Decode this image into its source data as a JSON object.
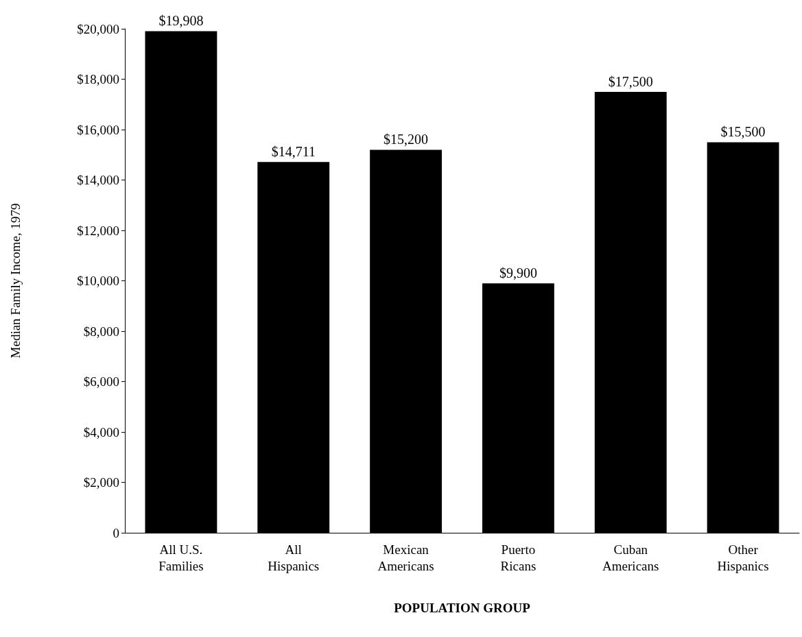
{
  "chart_data": {
    "type": "bar",
    "xlabel": "POPULATION GROUP",
    "ylabel": "Median Family Income, 1979",
    "categories": [
      "All U.S. Families",
      "All Hispanics",
      "Mexican Americans",
      "Puerto Ricans",
      "Cuban Americans",
      "Other Hispanics"
    ],
    "values": [
      19908,
      14711,
      15200,
      9900,
      17500,
      15500
    ],
    "value_labels": [
      "$19,908",
      "$14,711",
      "$15,200",
      "$9,900",
      "$17,500",
      "$15,500"
    ],
    "color": "#000000",
    "ylim": [
      0,
      20000
    ],
    "yticks": [
      0,
      {
        "value": 2000,
        "label": "$2,000"
      },
      {
        "value": 4000,
        "label": "$4,000"
      },
      {
        "value": 6000,
        "label": "$6,000"
      },
      {
        "value": 8000,
        "label": "$8,000"
      },
      {
        "value": 10000,
        "label": "$10,000"
      },
      {
        "value": 12000,
        "label": "$12,000"
      },
      {
        "value": 14000,
        "label": "$14,000"
      },
      {
        "value": 16000,
        "label": "$16,000"
      },
      {
        "value": 18000,
        "label": "$18,000"
      },
      {
        "value": 20000,
        "label": "$20,000"
      }
    ],
    "grid": false
  }
}
